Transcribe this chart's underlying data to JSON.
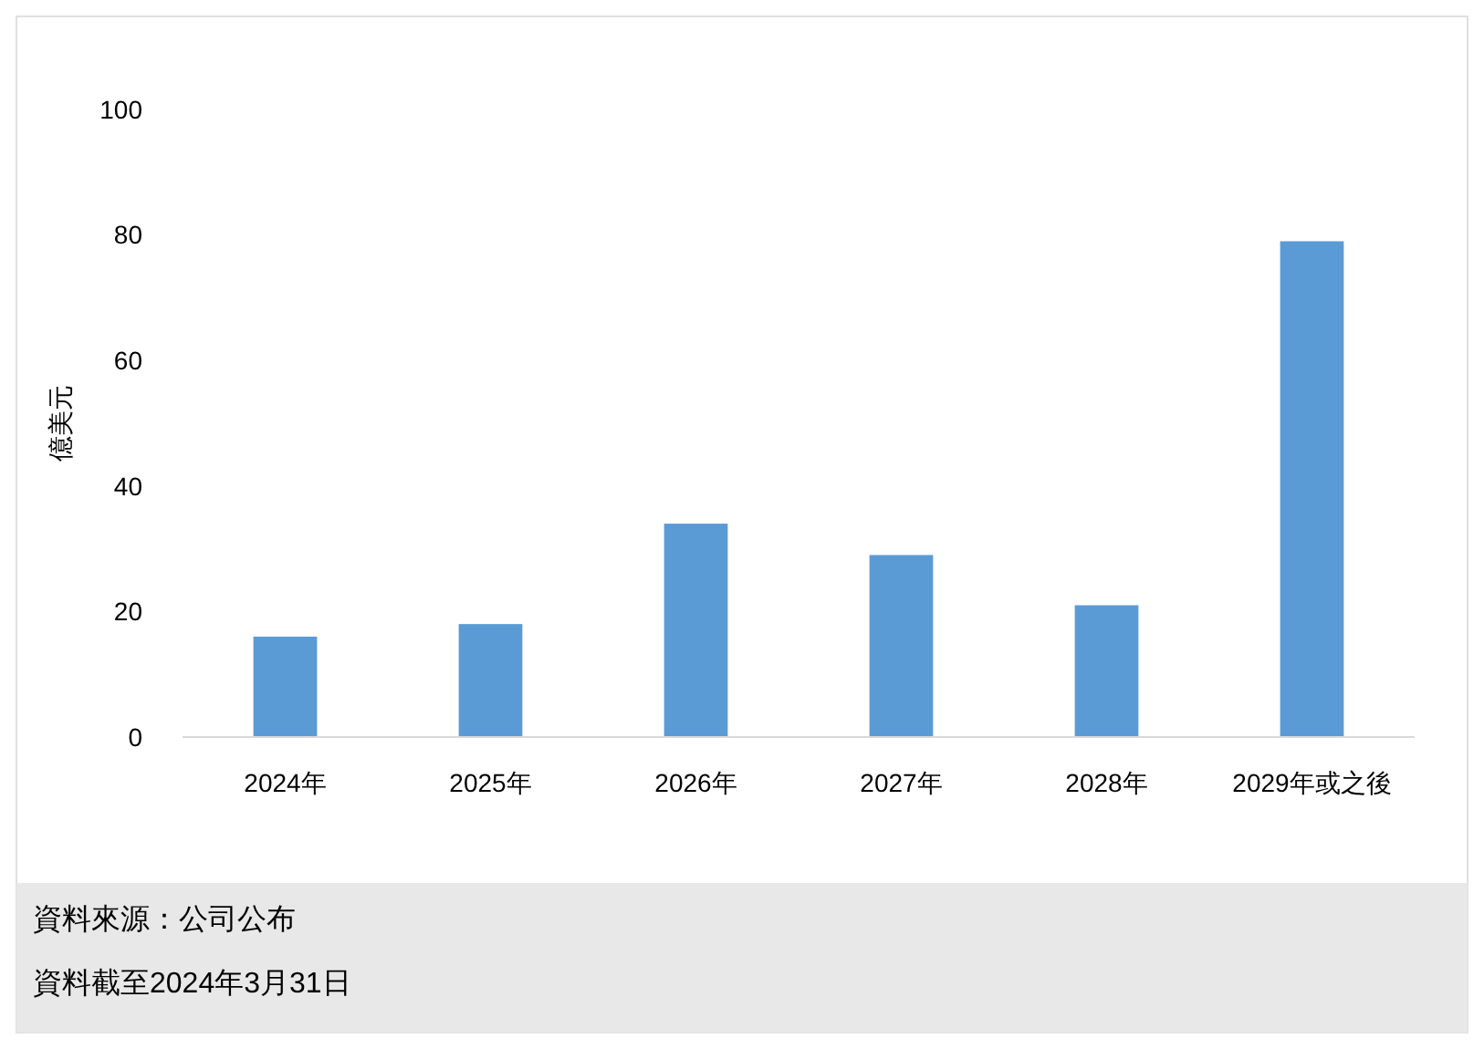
{
  "chart_data": {
    "type": "bar",
    "ylabel": "億美元",
    "categories": [
      "2024年",
      "2025年",
      "2026年",
      "2027年",
      "2028年",
      "2029年或之後"
    ],
    "values": [
      16,
      18,
      34,
      29,
      21,
      79
    ],
    "color": "#5b9bd5",
    "ylim": [
      0,
      100
    ],
    "yticks": [
      0,
      20,
      40,
      60,
      80,
      100
    ],
    "grid": false,
    "annotations": [
      "資料來源：公司公布",
      "資料截至2024年3月31日"
    ]
  }
}
